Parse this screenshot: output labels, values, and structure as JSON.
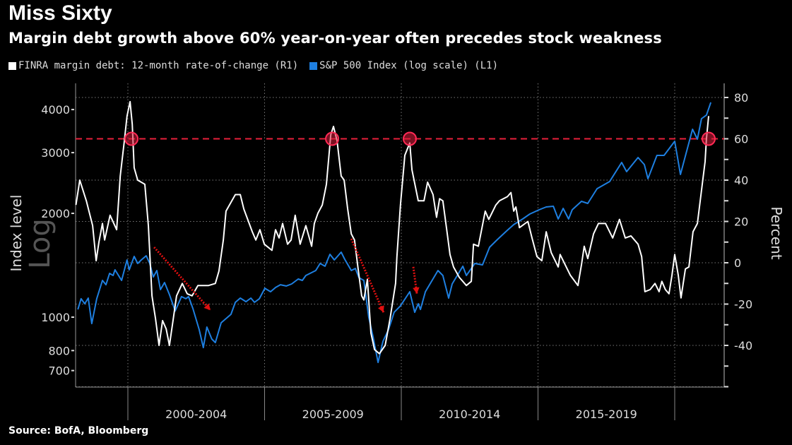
{
  "title": "Miss Sixty",
  "subtitle": "Margin debt growth above 60% year-on-year often precedes stock weakness",
  "source": "Source: BofA, Bloomberg",
  "colors": {
    "finra": "#ffffff",
    "spx": "#1e7fe0",
    "threshold": "#e8203a",
    "background": "#000000"
  },
  "chart_data": {
    "type": "line",
    "title": "Miss Sixty",
    "legend": [
      "FINRA margin debt: 12-month rate-of-change (R1)",
      "S&P 500 Index (log scale) (L1)"
    ],
    "legend_placement": "top-left",
    "left_axis": {
      "label": "Index level",
      "watermark": "Log",
      "scale": "log",
      "ticks": [
        700,
        800,
        1000,
        2000,
        3000,
        4000
      ],
      "tick_labels": [
        "700",
        "800",
        "1000",
        "2000",
        "3000",
        "4000"
      ],
      "range": [
        640,
        4600
      ]
    },
    "right_axis": {
      "label": "Percent",
      "ticks": [
        -40,
        -20,
        0,
        20,
        40,
        60,
        80
      ],
      "tick_labels": [
        "-40",
        "-20",
        "0",
        "20",
        "40",
        "60",
        "80"
      ],
      "range": [
        -60,
        85
      ]
    },
    "x_axis": {
      "range": [
        1998.1,
        2021.5
      ],
      "period_breaks": [
        2000,
        2005,
        2010,
        2015,
        2020
      ],
      "period_labels": [
        "2000-2004",
        "2005-2009",
        "2010-2014",
        "2015-2019"
      ]
    },
    "grid": true,
    "threshold": {
      "value": 60,
      "axis": "right"
    },
    "highlight_points": [
      [
        2000.13,
        60
      ],
      [
        2007.47,
        60
      ],
      [
        2010.31,
        60
      ],
      [
        2021.24,
        60
      ]
    ],
    "arrows": [
      {
        "from": [
          2000.96,
          7.5
        ],
        "to": [
          2003.02,
          -23
        ]
      },
      {
        "from": [
          2008.17,
          11.6
        ],
        "to": [
          2009.35,
          -24
        ]
      },
      {
        "from": [
          2010.44,
          -2
        ],
        "to": [
          2010.57,
          -15
        ]
      }
    ],
    "series": [
      {
        "name": "FINRA margin debt: 12-month rate-of-change (R1)",
        "axis": "right",
        "points": [
          [
            1998.1,
            28
          ],
          [
            1998.24,
            40
          ],
          [
            1998.48,
            30
          ],
          [
            1998.71,
            18
          ],
          [
            1998.84,
            1
          ],
          [
            1998.94,
            10
          ],
          [
            1999.07,
            19
          ],
          [
            1999.15,
            11
          ],
          [
            1999.35,
            23
          ],
          [
            1999.59,
            16
          ],
          [
            1999.72,
            42
          ],
          [
            1999.87,
            59
          ],
          [
            1999.97,
            71
          ],
          [
            2000.08,
            78
          ],
          [
            2000.16,
            67
          ],
          [
            2000.23,
            46
          ],
          [
            2000.36,
            40
          ],
          [
            2000.62,
            38
          ],
          [
            2000.75,
            18
          ],
          [
            2000.88,
            -16
          ],
          [
            2001.01,
            -27
          ],
          [
            2001.14,
            -40
          ],
          [
            2001.27,
            -28
          ],
          [
            2001.4,
            -32
          ],
          [
            2001.52,
            -40
          ],
          [
            2001.65,
            -28
          ],
          [
            2001.78,
            -16
          ],
          [
            2001.99,
            -10
          ],
          [
            2002.17,
            -15
          ],
          [
            2002.35,
            -16
          ],
          [
            2002.56,
            -11
          ],
          [
            2002.95,
            -11
          ],
          [
            2003.2,
            -10
          ],
          [
            2003.33,
            -4
          ],
          [
            2003.49,
            11
          ],
          [
            2003.59,
            25
          ],
          [
            2003.93,
            33
          ],
          [
            2004.11,
            33
          ],
          [
            2004.24,
            26
          ],
          [
            2004.55,
            15
          ],
          [
            2004.68,
            11
          ],
          [
            2004.83,
            16
          ],
          [
            2004.99,
            9
          ],
          [
            2005.27,
            6
          ],
          [
            2005.4,
            16
          ],
          [
            2005.53,
            12
          ],
          [
            2005.66,
            19
          ],
          [
            2005.84,
            9
          ],
          [
            2005.97,
            11
          ],
          [
            2006.12,
            23
          ],
          [
            2006.3,
            9
          ],
          [
            2006.51,
            18
          ],
          [
            2006.72,
            8
          ],
          [
            2006.82,
            19
          ],
          [
            2006.95,
            24
          ],
          [
            2007.11,
            28
          ],
          [
            2007.26,
            38
          ],
          [
            2007.42,
            62
          ],
          [
            2007.52,
            66
          ],
          [
            2007.65,
            59
          ],
          [
            2007.8,
            42
          ],
          [
            2007.91,
            40
          ],
          [
            2008.04,
            26
          ],
          [
            2008.17,
            14
          ],
          [
            2008.29,
            11
          ],
          [
            2008.42,
            -3
          ],
          [
            2008.55,
            -16
          ],
          [
            2008.63,
            -18
          ],
          [
            2008.76,
            -8
          ],
          [
            2008.89,
            -34
          ],
          [
            2009.02,
            -42
          ],
          [
            2009.2,
            -44
          ],
          [
            2009.41,
            -40
          ],
          [
            2009.59,
            -27
          ],
          [
            2009.79,
            -10
          ],
          [
            2009.84,
            3
          ],
          [
            2009.97,
            28
          ],
          [
            2010.13,
            52
          ],
          [
            2010.31,
            58
          ],
          [
            2010.39,
            45
          ],
          [
            2010.62,
            30
          ],
          [
            2010.83,
            30
          ],
          [
            2010.96,
            39
          ],
          [
            2011.16,
            33
          ],
          [
            2011.29,
            22
          ],
          [
            2011.4,
            31
          ],
          [
            2011.52,
            30
          ],
          [
            2011.65,
            17
          ],
          [
            2011.78,
            4
          ],
          [
            2011.91,
            -2
          ],
          [
            2012.12,
            -7
          ],
          [
            2012.38,
            -11
          ],
          [
            2012.56,
            -9
          ],
          [
            2012.64,
            9
          ],
          [
            2012.82,
            8
          ],
          [
            2013.07,
            25
          ],
          [
            2013.2,
            21
          ],
          [
            2013.46,
            28
          ],
          [
            2013.59,
            30
          ],
          [
            2013.88,
            32
          ],
          [
            2014.01,
            34
          ],
          [
            2014.11,
            25
          ],
          [
            2014.19,
            27
          ],
          [
            2014.32,
            17
          ],
          [
            2014.63,
            20
          ],
          [
            2014.78,
            12
          ],
          [
            2014.96,
            3
          ],
          [
            2015.14,
            1
          ],
          [
            2015.3,
            15
          ],
          [
            2015.48,
            5
          ],
          [
            2015.74,
            -2
          ],
          [
            2015.81,
            4
          ],
          [
            2016.18,
            -6
          ],
          [
            2016.46,
            -11
          ],
          [
            2016.59,
            -1
          ],
          [
            2016.69,
            8
          ],
          [
            2016.82,
            2
          ],
          [
            2017.03,
            14
          ],
          [
            2017.21,
            19
          ],
          [
            2017.47,
            19
          ],
          [
            2017.73,
            12
          ],
          [
            2017.98,
            21
          ],
          [
            2018.19,
            12
          ],
          [
            2018.4,
            13
          ],
          [
            2018.66,
            9
          ],
          [
            2018.79,
            3
          ],
          [
            2018.91,
            -14
          ],
          [
            2019.1,
            -13
          ],
          [
            2019.28,
            -10
          ],
          [
            2019.43,
            -14
          ],
          [
            2019.53,
            -9
          ],
          [
            2019.66,
            -13
          ],
          [
            2019.79,
            -15
          ],
          [
            2019.9,
            -6
          ],
          [
            2020.0,
            4
          ],
          [
            2020.13,
            -6
          ],
          [
            2020.23,
            -17
          ],
          [
            2020.39,
            -3
          ],
          [
            2020.52,
            -2
          ],
          [
            2020.67,
            15
          ],
          [
            2020.83,
            19
          ],
          [
            2020.98,
            35
          ],
          [
            2021.11,
            49
          ],
          [
            2021.16,
            60
          ],
          [
            2021.24,
            71
          ]
        ]
      },
      {
        "name": "S&P 500 Index (log scale) (L1)",
        "axis": "left",
        "points": [
          [
            1998.17,
            1053
          ],
          [
            1998.29,
            1131
          ],
          [
            1998.42,
            1094
          ],
          [
            1998.55,
            1136
          ],
          [
            1998.68,
            958
          ],
          [
            1998.86,
            1131
          ],
          [
            1999.07,
            1278
          ],
          [
            1999.2,
            1242
          ],
          [
            1999.33,
            1340
          ],
          [
            1999.46,
            1321
          ],
          [
            1999.53,
            1372
          ],
          [
            1999.77,
            1278
          ],
          [
            1999.97,
            1465
          ],
          [
            2000.05,
            1372
          ],
          [
            2000.23,
            1500
          ],
          [
            2000.36,
            1431
          ],
          [
            2000.49,
            1465
          ],
          [
            2000.67,
            1507
          ],
          [
            2000.8,
            1431
          ],
          [
            2000.93,
            1308
          ],
          [
            2001.06,
            1365
          ],
          [
            2001.19,
            1202
          ],
          [
            2001.34,
            1260
          ],
          [
            2001.52,
            1163
          ],
          [
            2001.73,
            1043
          ],
          [
            2001.96,
            1147
          ],
          [
            2002.12,
            1131
          ],
          [
            2002.22,
            1147
          ],
          [
            2002.38,
            1058
          ],
          [
            2002.61,
            919
          ],
          [
            2002.76,
            816
          ],
          [
            2002.89,
            936
          ],
          [
            2003.07,
            864
          ],
          [
            2003.2,
            844
          ],
          [
            2003.41,
            963
          ],
          [
            2003.77,
            1019
          ],
          [
            2003.93,
            1104
          ],
          [
            2004.11,
            1136
          ],
          [
            2004.32,
            1109
          ],
          [
            2004.5,
            1136
          ],
          [
            2004.63,
            1104
          ],
          [
            2004.81,
            1131
          ],
          [
            2005.01,
            1213
          ],
          [
            2005.22,
            1185
          ],
          [
            2005.4,
            1219
          ],
          [
            2005.58,
            1242
          ],
          [
            2005.79,
            1231
          ],
          [
            2005.99,
            1248
          ],
          [
            2006.23,
            1290
          ],
          [
            2006.38,
            1278
          ],
          [
            2006.51,
            1321
          ],
          [
            2006.87,
            1365
          ],
          [
            2007.03,
            1431
          ],
          [
            2007.21,
            1405
          ],
          [
            2007.39,
            1522
          ],
          [
            2007.55,
            1465
          ],
          [
            2007.8,
            1543
          ],
          [
            2007.93,
            1472
          ],
          [
            2008.17,
            1365
          ],
          [
            2008.32,
            1385
          ],
          [
            2008.45,
            1302
          ],
          [
            2008.63,
            1278
          ],
          [
            2008.81,
            999
          ],
          [
            2008.97,
            876
          ],
          [
            2009.15,
            739
          ],
          [
            2009.33,
            852
          ],
          [
            2009.53,
            919
          ],
          [
            2009.74,
            1033
          ],
          [
            2009.97,
            1078
          ],
          [
            2010.31,
            1185
          ],
          [
            2010.49,
            1033
          ],
          [
            2010.62,
            1094
          ],
          [
            2010.7,
            1053
          ],
          [
            2010.88,
            1185
          ],
          [
            2011.34,
            1365
          ],
          [
            2011.52,
            1321
          ],
          [
            2011.73,
            1136
          ],
          [
            2011.86,
            1248
          ],
          [
            2012.25,
            1405
          ],
          [
            2012.38,
            1321
          ],
          [
            2012.69,
            1431
          ],
          [
            2012.97,
            1418
          ],
          [
            2013.23,
            1595
          ],
          [
            2013.49,
            1672
          ],
          [
            2013.85,
            1778
          ],
          [
            2014.11,
            1855
          ],
          [
            2014.44,
            1926
          ],
          [
            2014.7,
            1991
          ],
          [
            2015.04,
            2048
          ],
          [
            2015.3,
            2087
          ],
          [
            2015.56,
            2097
          ],
          [
            2015.74,
            1926
          ],
          [
            2015.92,
            2068
          ],
          [
            2016.12,
            1926
          ],
          [
            2016.25,
            2048
          ],
          [
            2016.59,
            2168
          ],
          [
            2016.82,
            2137
          ],
          [
            2017.16,
            2359
          ],
          [
            2017.62,
            2474
          ],
          [
            2018.06,
            2810
          ],
          [
            2018.24,
            2642
          ],
          [
            2018.66,
            2904
          ],
          [
            2018.89,
            2770
          ],
          [
            2019.02,
            2521
          ],
          [
            2019.35,
            2945
          ],
          [
            2019.61,
            2945
          ],
          [
            2020.0,
            3237
          ],
          [
            2020.21,
            2593
          ],
          [
            2020.65,
            3507
          ],
          [
            2020.83,
            3283
          ],
          [
            2020.98,
            3764
          ],
          [
            2021.16,
            3855
          ],
          [
            2021.32,
            4195
          ]
        ]
      }
    ]
  }
}
